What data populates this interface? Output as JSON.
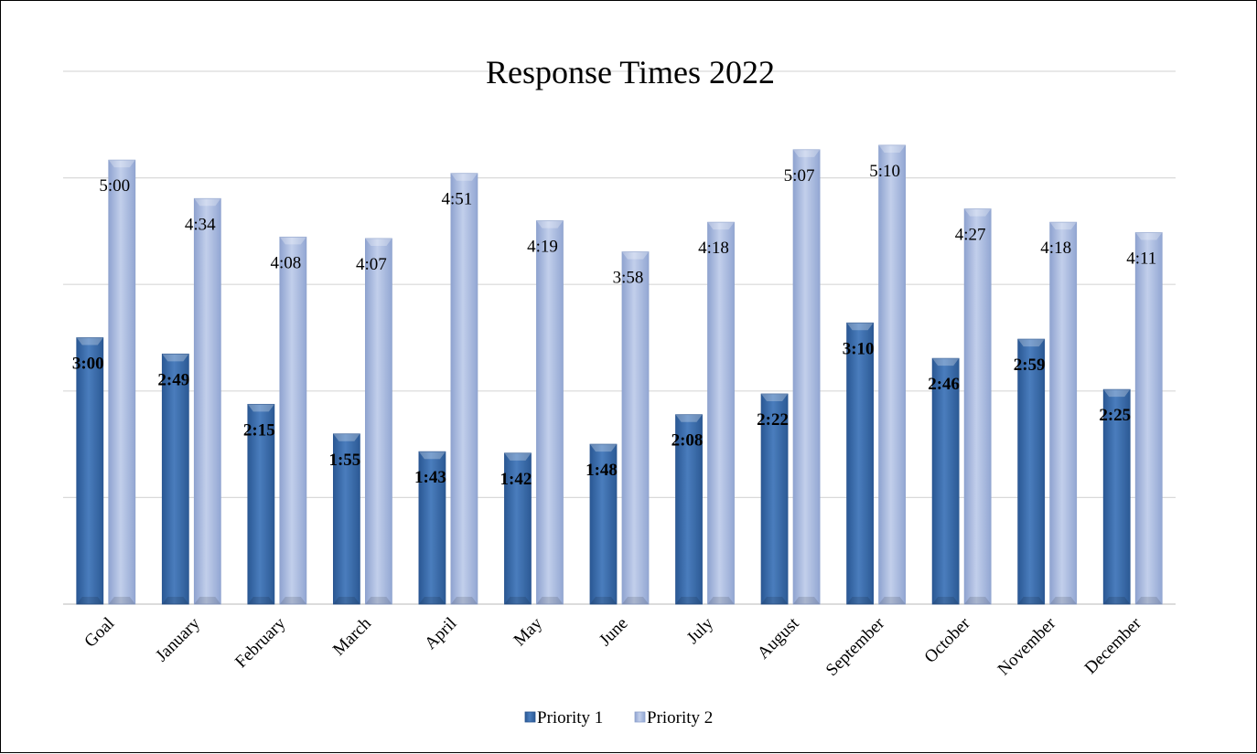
{
  "chart_data": {
    "type": "bar",
    "title": "Response Times 2022",
    "categories": [
      "Goal",
      "January",
      "February",
      "March",
      "April",
      "May",
      "June",
      "July",
      "August",
      "September",
      "October",
      "November",
      "December"
    ],
    "value_unit": "minutes",
    "series": [
      {
        "name": "Priority 1",
        "color": "#3f70ad",
        "labels": [
          "3:00",
          "2:49",
          "2:15",
          "1:55",
          "1:43",
          "1:42",
          "1:48",
          "2:08",
          "2:22",
          "3:10",
          "2:46",
          "2:59",
          "2:25"
        ],
        "values": [
          180,
          169,
          135,
          115,
          103,
          102,
          108,
          128,
          142,
          190,
          166,
          179,
          145
        ]
      },
      {
        "name": "Priority 2",
        "color": "#a9b9dc",
        "labels": [
          "5:00",
          "4:34",
          "4:08",
          "4:07",
          "4:51",
          "4:19",
          "3:58",
          "4:18",
          "5:07",
          "5:10",
          "4:27",
          "4:18",
          "4:11"
        ],
        "values": [
          300,
          274,
          248,
          247,
          291,
          259,
          238,
          258,
          307,
          310,
          267,
          258,
          251
        ]
      }
    ],
    "ylim": [
      0,
      360
    ],
    "grid": true,
    "legend": "bottom",
    "ylabel": "",
    "xlabel": ""
  }
}
